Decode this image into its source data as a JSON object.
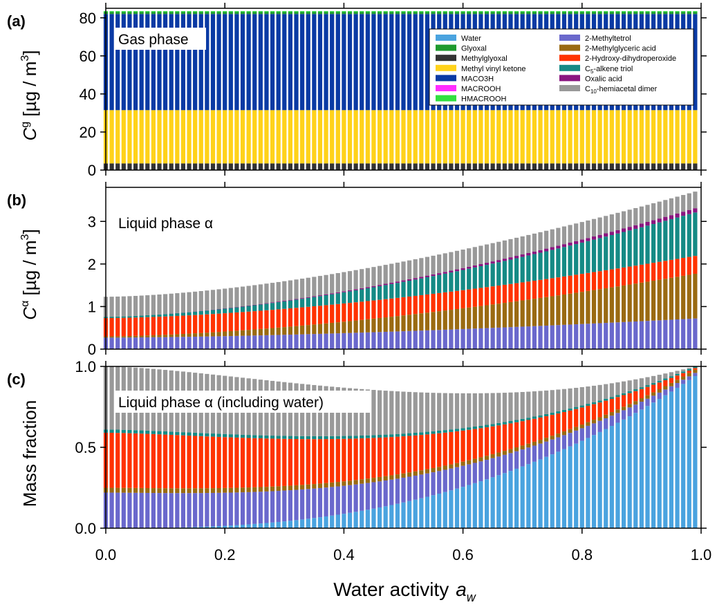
{
  "colors": {
    "water": "#4aa3df",
    "glyoxal": "#1f9a2e",
    "methylglyoxal": "#333333",
    "mvk": "#ffd21a",
    "maco3h": "#0a3aa4",
    "macrooh": "#ff2cff",
    "hmacrooh": "#31e040",
    "methyltetrol": "#6a68cc",
    "methylglyceric": "#9a6a12",
    "hydroxyperoxide": "#ff3300",
    "alkene_triol": "#158a85",
    "oxalic": "#8a1580",
    "dimer": "#999999"
  },
  "panels": [
    {
      "letter": "(a)",
      "annotation": "Gas phase",
      "ylabel": {
        "main": "C",
        "sup": "g",
        "unit": "[µg / m",
        "unit_sup": "3",
        "close": "]"
      }
    },
    {
      "letter": "(b)",
      "annotation": "Liquid phase α",
      "ylabel": {
        "main": "C",
        "sup": "α",
        "unit": "[µg / m",
        "unit_sup": "3",
        "close": "]"
      }
    },
    {
      "letter": "(c)",
      "annotation": "Liquid phase α (including water)",
      "ylabel": {
        "main": "Mass fraction"
      }
    }
  ],
  "xlabel": {
    "main": "Water activity",
    "var": "a",
    "sub": "w"
  },
  "legend": {
    "left": [
      {
        "key": "water",
        "label": "Water"
      },
      {
        "key": "glyoxal",
        "label": "Glyoxal"
      },
      {
        "key": "methylglyoxal",
        "label": "Methylglyoxal"
      },
      {
        "key": "mvk",
        "label": "Methyl vinyl ketone"
      },
      {
        "key": "maco3h",
        "label": "MACO3H"
      },
      {
        "key": "macrooh",
        "label": "MACROOH"
      },
      {
        "key": "hmacrooh",
        "label": "HMACROOH"
      }
    ],
    "right": [
      {
        "key": "methyltetrol",
        "label": "2-Methyltetrol"
      },
      {
        "key": "methylglyceric",
        "label": "2-Methylglyceric acid"
      },
      {
        "key": "hydroxyperoxide",
        "label": "2-Hydroxy-dihydroperoxide"
      },
      {
        "key": "alkene_triol",
        "label": "C",
        "sub": "5",
        "rest": "-alkene triol"
      },
      {
        "key": "oxalic",
        "label": "Oxalic acid"
      },
      {
        "key": "dimer",
        "label": "C",
        "sub": "10",
        "rest": "-hemiacetal dimer"
      }
    ]
  },
  "chart_data": [
    {
      "type": "bar",
      "stacked": true,
      "panel": "(a)",
      "x_range": [
        0,
        0.99
      ],
      "n_bars": 100,
      "xlim": [
        0,
        1
      ],
      "ylim": [
        0,
        85
      ],
      "yticks": [
        0,
        20,
        40,
        60,
        80
      ],
      "xticks": [
        0.0,
        0.2,
        0.4,
        0.6,
        0.8,
        1.0
      ],
      "series": [
        {
          "key": "methylglyoxal",
          "start": 3.5,
          "end": 3.5
        },
        {
          "key": "mvk",
          "start": 28.0,
          "end": 28.0
        },
        {
          "key": "maco3h",
          "start": 50.5,
          "end": 50.5
        },
        {
          "key": "glyoxal",
          "start": 1.0,
          "end": 1.0
        },
        {
          "key": "hmacrooh",
          "start": 0.5,
          "end": 0.5
        }
      ]
    },
    {
      "type": "bar",
      "stacked": true,
      "panel": "(b)",
      "x_range": [
        0,
        0.99
      ],
      "n_bars": 100,
      "xlim": [
        0,
        1
      ],
      "ylim": [
        0,
        3.8
      ],
      "yticks": [
        0,
        1,
        2,
        3
      ],
      "xticks": [
        0.0,
        0.2,
        0.4,
        0.6,
        0.8,
        1.0
      ],
      "series": [
        {
          "key": "methyltetrol",
          "start": 0.27,
          "end": 0.72
        },
        {
          "key": "methylglyceric",
          "start": 0.03,
          "end": 1.05
        },
        {
          "key": "hydroxyperoxide",
          "start": 0.43,
          "end": 0.42
        },
        {
          "key": "alkene_triol",
          "start": 0.03,
          "end": 1.02
        },
        {
          "key": "oxalic",
          "start": 0.0,
          "end": 0.1
        },
        {
          "key": "dimer",
          "start": 0.47,
          "end": 0.39
        }
      ]
    },
    {
      "type": "bar",
      "stacked": true,
      "panel": "(c)",
      "x_range": [
        0,
        0.99
      ],
      "n_bars": 100,
      "xlim": [
        0,
        1
      ],
      "ylim": [
        0,
        1
      ],
      "yticks": [
        0.0,
        0.5,
        1.0
      ],
      "xticks": [
        0.0,
        0.2,
        0.4,
        0.6,
        0.8,
        1.0
      ],
      "series": [
        {
          "key": "water",
          "start": 0.0,
          "end": 0.94
        },
        {
          "key": "methyltetrol",
          "start": 0.22,
          "end": 0.02
        },
        {
          "key": "methylglyceric",
          "start": 0.03,
          "end": 0.02
        },
        {
          "key": "hydroxyperoxide",
          "start": 0.34,
          "end": 0.01
        },
        {
          "key": "alkene_triol",
          "start": 0.02,
          "end": 0.01
        },
        {
          "key": "oxalic",
          "start": 0.0,
          "end": 0.0
        },
        {
          "key": "dimer",
          "start": 0.39,
          "end": 0.0
        }
      ]
    }
  ]
}
